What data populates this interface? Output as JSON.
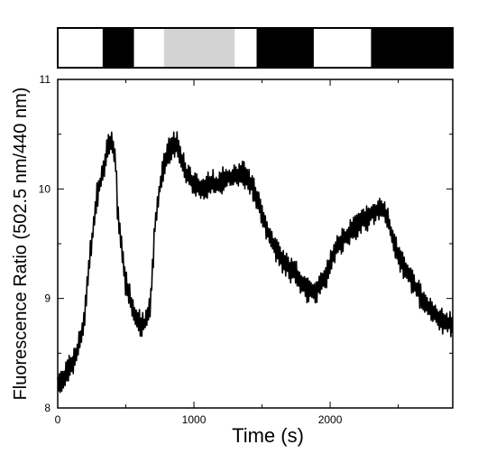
{
  "chart_data": {
    "type": "line",
    "title": "",
    "xlabel": "Time (s)",
    "ylabel": "Fluorescence Ratio (502.5 nm/440 nm)",
    "xlim": [
      0,
      2900
    ],
    "ylim": [
      8,
      11
    ],
    "x_ticks": [
      0,
      1000,
      2000
    ],
    "x_tick_labels": [
      "0",
      "1000",
      "2000"
    ],
    "y_ticks": [
      8,
      9,
      10,
      11
    ],
    "y_tick_labels": [
      "8",
      "9",
      "10",
      "11"
    ],
    "grid": false,
    "line_color": "#000000",
    "condition_bar": [
      {
        "start": 0,
        "end": 330,
        "state": "white"
      },
      {
        "start": 330,
        "end": 560,
        "state": "black"
      },
      {
        "start": 560,
        "end": 780,
        "state": "white"
      },
      {
        "start": 780,
        "end": 1300,
        "state": "gray"
      },
      {
        "start": 1300,
        "end": 1460,
        "state": "white"
      },
      {
        "start": 1460,
        "end": 1880,
        "state": "black"
      },
      {
        "start": 1880,
        "end": 2300,
        "state": "white"
      },
      {
        "start": 2300,
        "end": 2900,
        "state": "black"
      }
    ],
    "bar_colors": {
      "white": "#ffffff",
      "black": "#000000",
      "gray": "#d3d3d3"
    },
    "series": [
      {
        "x": [
          0,
          60,
          130,
          190,
          230,
          290,
          340,
          370,
          400,
          425,
          440,
          460,
          500,
          540,
          580,
          620,
          650,
          680,
          700,
          710,
          760,
          800,
          840,
          880,
          920,
          960,
          1000,
          1060,
          1120,
          1180,
          1240,
          1300,
          1350,
          1400,
          1440,
          1480,
          1530,
          1600,
          1680,
          1750,
          1820,
          1880,
          1930,
          1980,
          2040,
          2100,
          2160,
          2220,
          2280,
          2330,
          2380,
          2420,
          2460,
          2500,
          2560,
          2620,
          2680,
          2740,
          2800,
          2860,
          2900
        ],
        "y": [
          8.2,
          8.3,
          8.45,
          8.75,
          9.3,
          9.95,
          10.2,
          10.4,
          10.45,
          10.25,
          9.8,
          9.55,
          9.15,
          8.95,
          8.8,
          8.75,
          8.78,
          8.95,
          9.3,
          9.65,
          10.1,
          10.3,
          10.42,
          10.4,
          10.22,
          10.1,
          10.05,
          10.0,
          10.05,
          10.05,
          10.1,
          10.12,
          10.15,
          10.1,
          9.98,
          9.85,
          9.65,
          9.45,
          9.3,
          9.22,
          9.1,
          9.05,
          9.12,
          9.25,
          9.45,
          9.55,
          9.62,
          9.7,
          9.75,
          9.8,
          9.82,
          9.75,
          9.55,
          9.38,
          9.25,
          9.12,
          8.98,
          8.9,
          8.82,
          8.78,
          8.75
        ]
      }
    ]
  }
}
